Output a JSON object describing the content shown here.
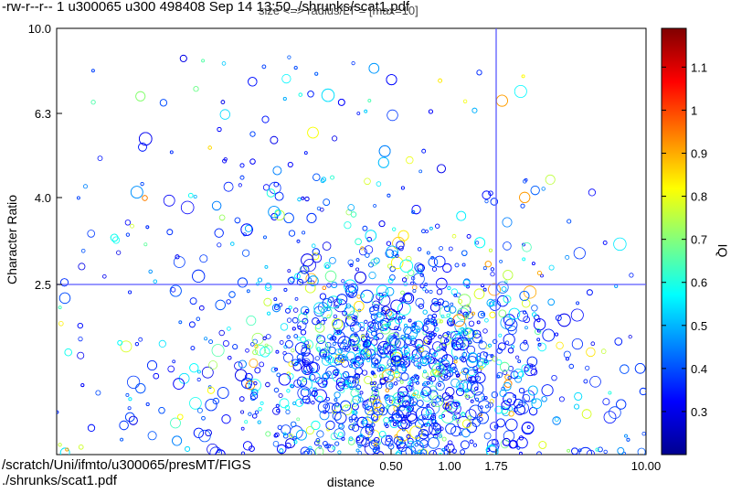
{
  "header": {
    "file_info": "-rw-r--r-- 1 u300065 u300 498408 Sep 14 13:50 ./shrunks/scat1.pdf"
  },
  "subtitle": "size <=> radius/LT = [max=10]",
  "footer": {
    "line1": "/scratch/Uni/ifmto/u300065/presMT/FIGS",
    "line2": "./shrunks/scat1.pdf"
  },
  "chart_data": {
    "type": "scatter",
    "xlabel": "distance",
    "ylabel": "Character Ratio",
    "x_tick_labels": [
      "0.50",
      "1.00",
      "1.75",
      "10.00"
    ],
    "y_tick_labels": [
      "10.0",
      "6.3",
      "4.0",
      "2.5"
    ],
    "reference_lines": {
      "x": 1.75,
      "y": 2.5
    },
    "colorbar": {
      "label": "IQ",
      "tick_labels": [
        "0.3",
        "0.4",
        "0.5",
        "0.6",
        "0.7",
        "0.8",
        "0.9",
        "1",
        "1.1"
      ],
      "range": [
        0.2,
        1.19
      ]
    },
    "grid": false
  },
  "colors": {
    "ref_line": "#5a5aff",
    "marker_dominant": "#2a2ad0"
  }
}
